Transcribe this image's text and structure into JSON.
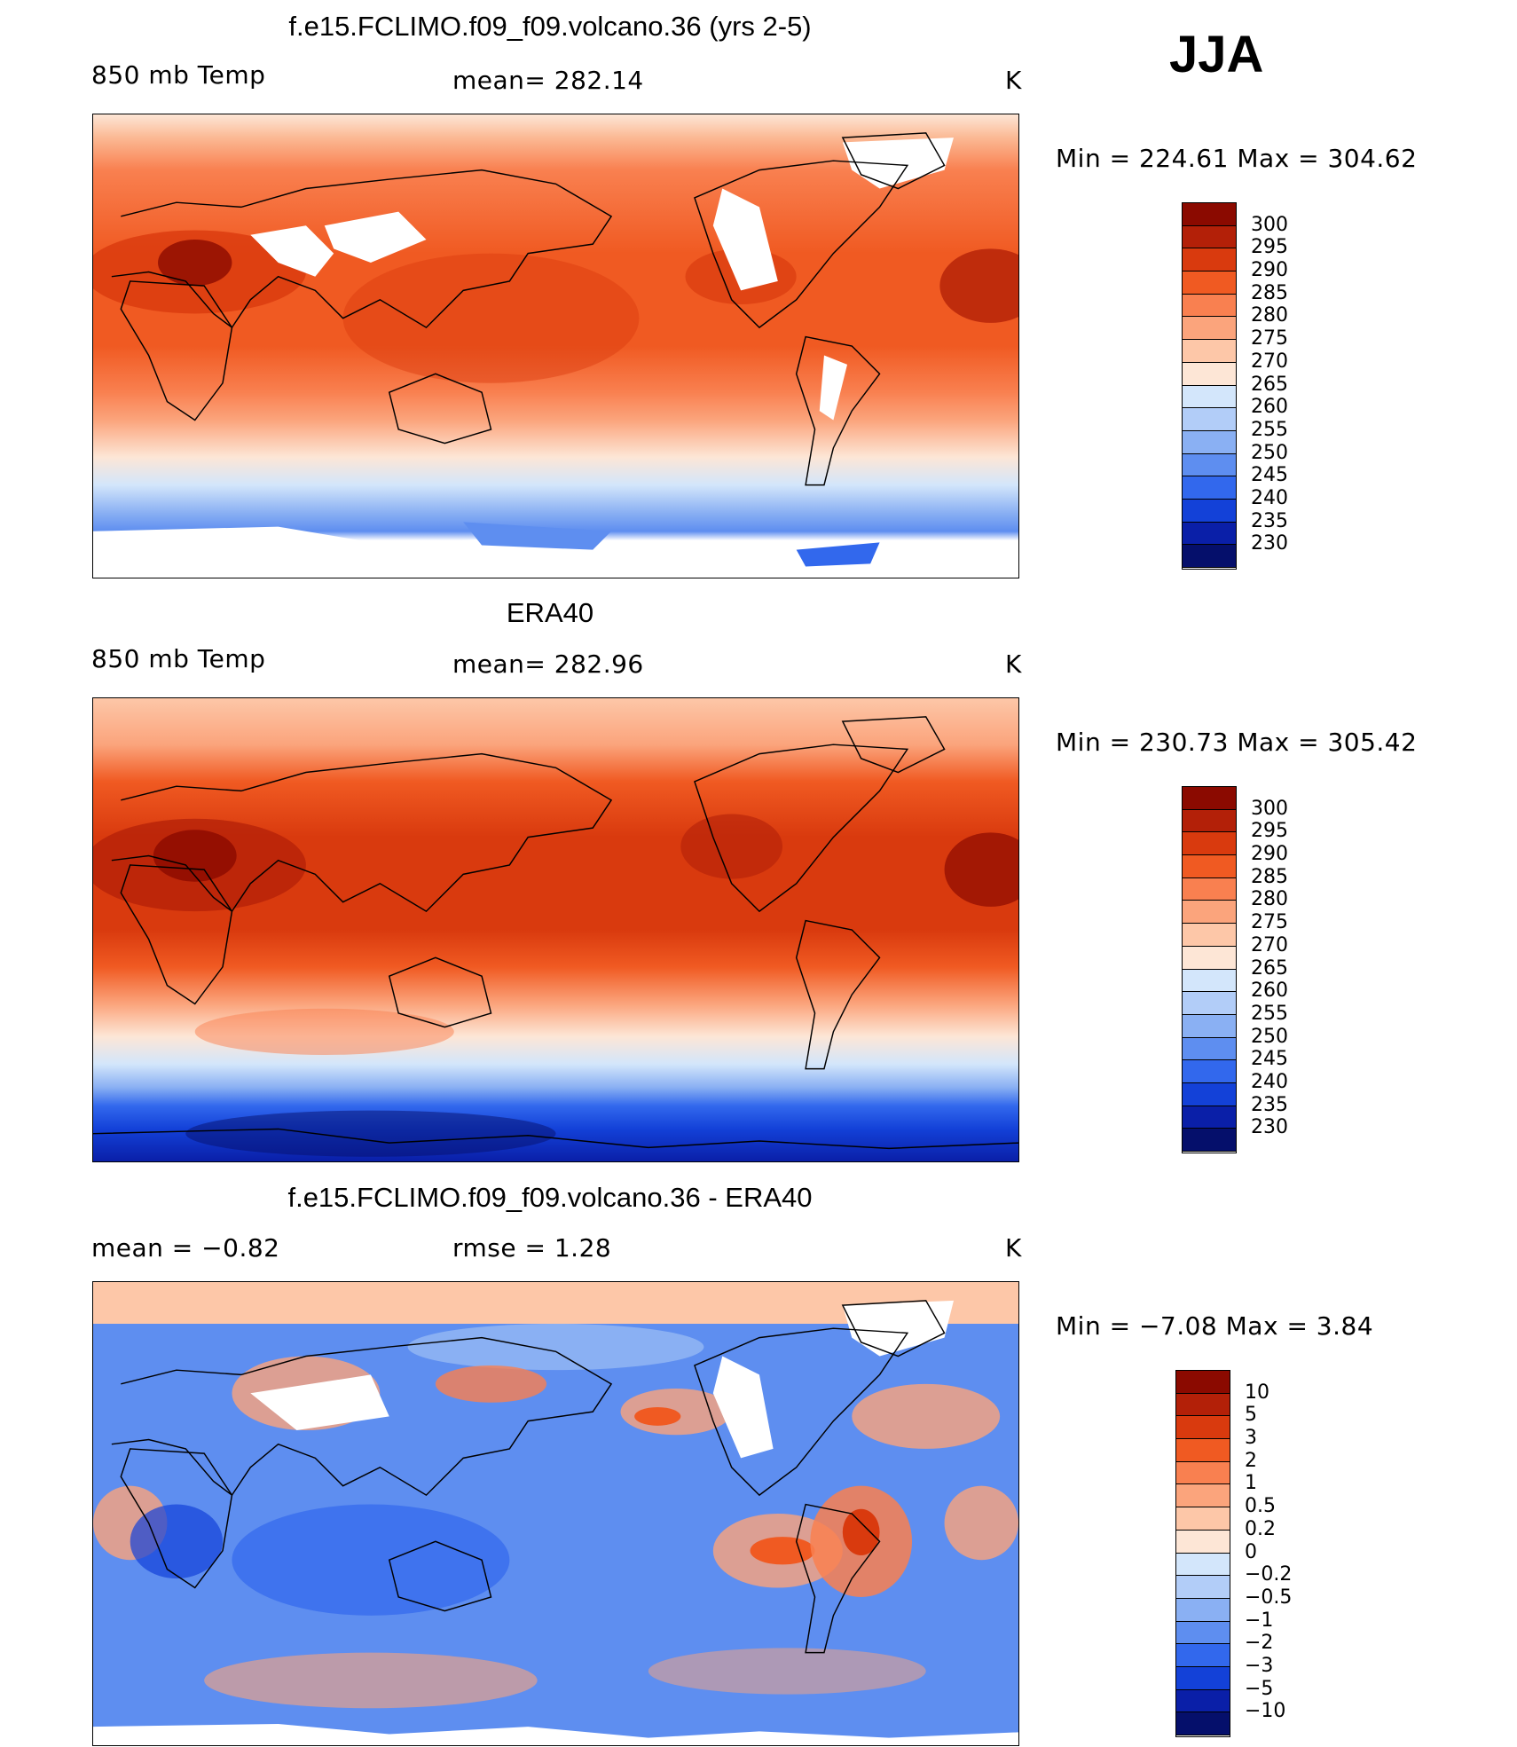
{
  "season": "JJA",
  "units": "K",
  "panels": [
    {
      "title": "f.e15.FCLIMO.f09_f09.volcano.36 (yrs 2-5)",
      "left_label": "850 mb Temp",
      "center_label": "mean=  282.14",
      "right_label": "K",
      "minmax": "Min  =  224.61  Max  =  304.62"
    },
    {
      "title": "ERA40",
      "left_label": "850 mb Temp",
      "center_label": "mean=  282.96",
      "right_label": "K",
      "minmax": "Min  =  230.73  Max  =  305.42"
    },
    {
      "title": "f.e15.FCLIMO.f09_f09.volcano.36 - ERA40",
      "left_label": "mean  =     −0.82",
      "center_label": "rmse  =      1.28",
      "right_label": "K",
      "minmax": "Min  =    −7.08  Max  =        3.84"
    }
  ],
  "chart_data": [
    {
      "type": "heatmap",
      "title": "f.e15.FCLIMO.f09_f09.volcano.36 (yrs 2-5)",
      "variable": "850 mb Temp",
      "units": "K",
      "mean": 282.14,
      "min": 224.61,
      "max": 304.62,
      "colorbar_levels": [
        "300",
        "295",
        "290",
        "285",
        "280",
        "275",
        "270",
        "265",
        "260",
        "255",
        "250",
        "245",
        "240",
        "235",
        "230"
      ],
      "colorbar_colors": [
        "#8b0a00",
        "#b32008",
        "#d93a0e",
        "#f05a22",
        "#f98050",
        "#fba47c",
        "#fdc7a8",
        "#fde6d6",
        "#d3e6fb",
        "#b2cdf8",
        "#8ab0f3",
        "#5e8ef0",
        "#3268ed",
        "#1341d8",
        "#0a1fa8",
        "#050f6b"
      ]
    },
    {
      "type": "heatmap",
      "title": "ERA40",
      "variable": "850 mb Temp",
      "units": "K",
      "mean": 282.96,
      "min": 230.73,
      "max": 305.42,
      "colorbar_levels": [
        "300",
        "295",
        "290",
        "285",
        "280",
        "275",
        "270",
        "265",
        "260",
        "255",
        "250",
        "245",
        "240",
        "235",
        "230"
      ],
      "colorbar_colors": [
        "#8b0a00",
        "#b32008",
        "#d93a0e",
        "#f05a22",
        "#f98050",
        "#fba47c",
        "#fdc7a8",
        "#fde6d6",
        "#d3e6fb",
        "#b2cdf8",
        "#8ab0f3",
        "#5e8ef0",
        "#3268ed",
        "#1341d8",
        "#0a1fa8",
        "#050f6b"
      ]
    },
    {
      "type": "heatmap",
      "title": "f.e15.FCLIMO.f09_f09.volcano.36 - ERA40",
      "units": "K",
      "mean": -0.82,
      "rmse": 1.28,
      "min": -7.08,
      "max": 3.84,
      "colorbar_levels": [
        "10",
        "5",
        "3",
        "2",
        "1",
        "0.5",
        "0.2",
        "0",
        "−0.2",
        "−0.5",
        "−1",
        "−2",
        "−3",
        "−5",
        "−10"
      ],
      "colorbar_colors": [
        "#8b0a00",
        "#b32008",
        "#d93a0e",
        "#f05a22",
        "#f98050",
        "#fba47c",
        "#fdc7a8",
        "#fde6d6",
        "#d3e6fb",
        "#b2cdf8",
        "#8ab0f3",
        "#5e8ef0",
        "#3268ed",
        "#1341d8",
        "#0a1fa8",
        "#050f6b"
      ]
    }
  ]
}
